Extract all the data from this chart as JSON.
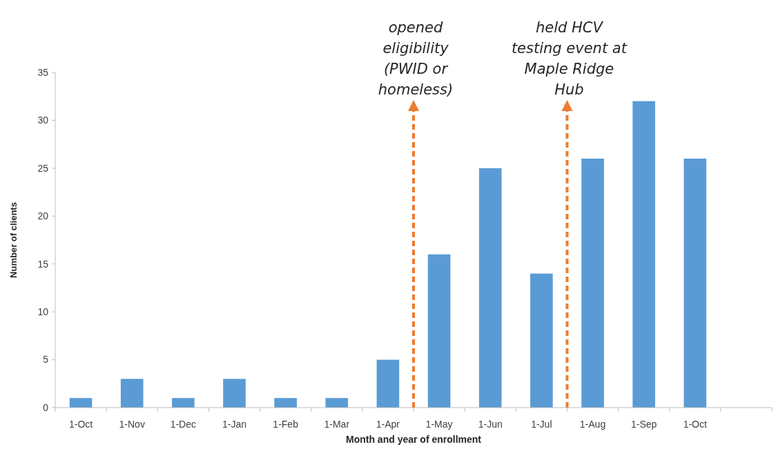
{
  "chart_data": {
    "type": "bar",
    "xlabel": "Month and year of enrollment",
    "ylabel": "Number of clients",
    "categories": [
      "1-Oct",
      "1-Nov",
      "1-Dec",
      "1-Jan",
      "1-Feb",
      "1-Mar",
      "1-Apr",
      "1-May",
      "1-Jun",
      "1-Jul",
      "1-Aug",
      "1-Sep",
      "1-Oct",
      null
    ],
    "values": [
      1,
      3,
      1,
      3,
      1,
      1,
      5,
      16,
      25,
      14,
      26,
      32,
      26,
      null
    ],
    "color": "#5b9bd5",
    "ylim": [
      0,
      35
    ],
    "yticks": [
      0,
      5,
      10,
      15,
      20,
      25,
      30,
      35
    ],
    "grid": false,
    "annotations": [
      "opened\neligibility\n(PWID or\nhomeless)",
      "held HCV\ntesting event at\nMaple Ridge\nHub"
    ]
  }
}
